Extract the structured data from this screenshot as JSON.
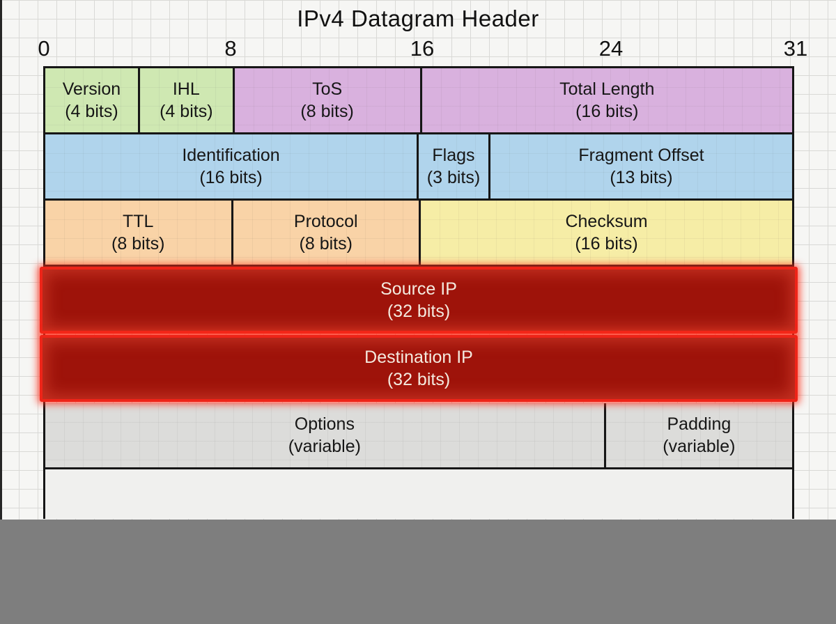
{
  "title": "IPv4 Datagram Header",
  "bit_ruler": {
    "labels": [
      "0",
      "8",
      "16",
      "24",
      "31"
    ]
  },
  "table": {
    "rows": [
      {
        "cells": [
          {
            "label": "Version",
            "sub": "(4 bits)",
            "bits": 4,
            "color": "green"
          },
          {
            "label": "IHL",
            "sub": "(4 bits)",
            "bits": 4,
            "color": "green"
          },
          {
            "label": "ToS",
            "sub": "(8 bits)",
            "bits": 8,
            "color": "purple"
          },
          {
            "label": "Total Length",
            "sub": "(16 bits)",
            "bits": 16,
            "color": "purple"
          }
        ]
      },
      {
        "cells": [
          {
            "label": "Identification",
            "sub": "(16 bits)",
            "bits": 16,
            "color": "blue"
          },
          {
            "label": "Flags",
            "sub": "(3 bits)",
            "bits": 3,
            "color": "blue"
          },
          {
            "label": "Fragment Offset",
            "sub": "(13 bits)",
            "bits": 13,
            "color": "blue"
          }
        ]
      },
      {
        "cells": [
          {
            "label": "TTL",
            "sub": "(8 bits)",
            "bits": 8,
            "color": "orange"
          },
          {
            "label": "Protocol",
            "sub": "(8 bits)",
            "bits": 8,
            "color": "orange"
          },
          {
            "label": "Checksum",
            "sub": "(16 bits)",
            "bits": 16,
            "color": "yellow"
          }
        ]
      },
      {
        "cells": [
          {
            "label": "Source IP",
            "sub": "(32 bits)",
            "bits": 32,
            "color": "red"
          }
        ]
      },
      {
        "cells": [
          {
            "label": "Destination IP",
            "sub": "(32 bits)",
            "bits": 32,
            "color": "red"
          }
        ]
      },
      {
        "cells": [
          {
            "label": "Options",
            "sub": "(variable)",
            "bits": 24,
            "color": "gray"
          },
          {
            "label": "Padding",
            "sub": "(variable)",
            "bits": 8,
            "color": "gray"
          }
        ]
      }
    ]
  },
  "colors": {
    "background": "#f6f6f4",
    "grid_line": "#d9d9d6",
    "green": "#cfe8b2",
    "purple": "#d9b1de",
    "blue": "#b0d4ec",
    "orange": "#f9d3a7",
    "yellow": "#f6eda6",
    "gray": "#dcdcda",
    "red_fill": "#9e130a",
    "red_border": "#ee2418",
    "red_text": "#f4eadf",
    "border": "#161616",
    "bottom_band": "#7e7e7e"
  }
}
